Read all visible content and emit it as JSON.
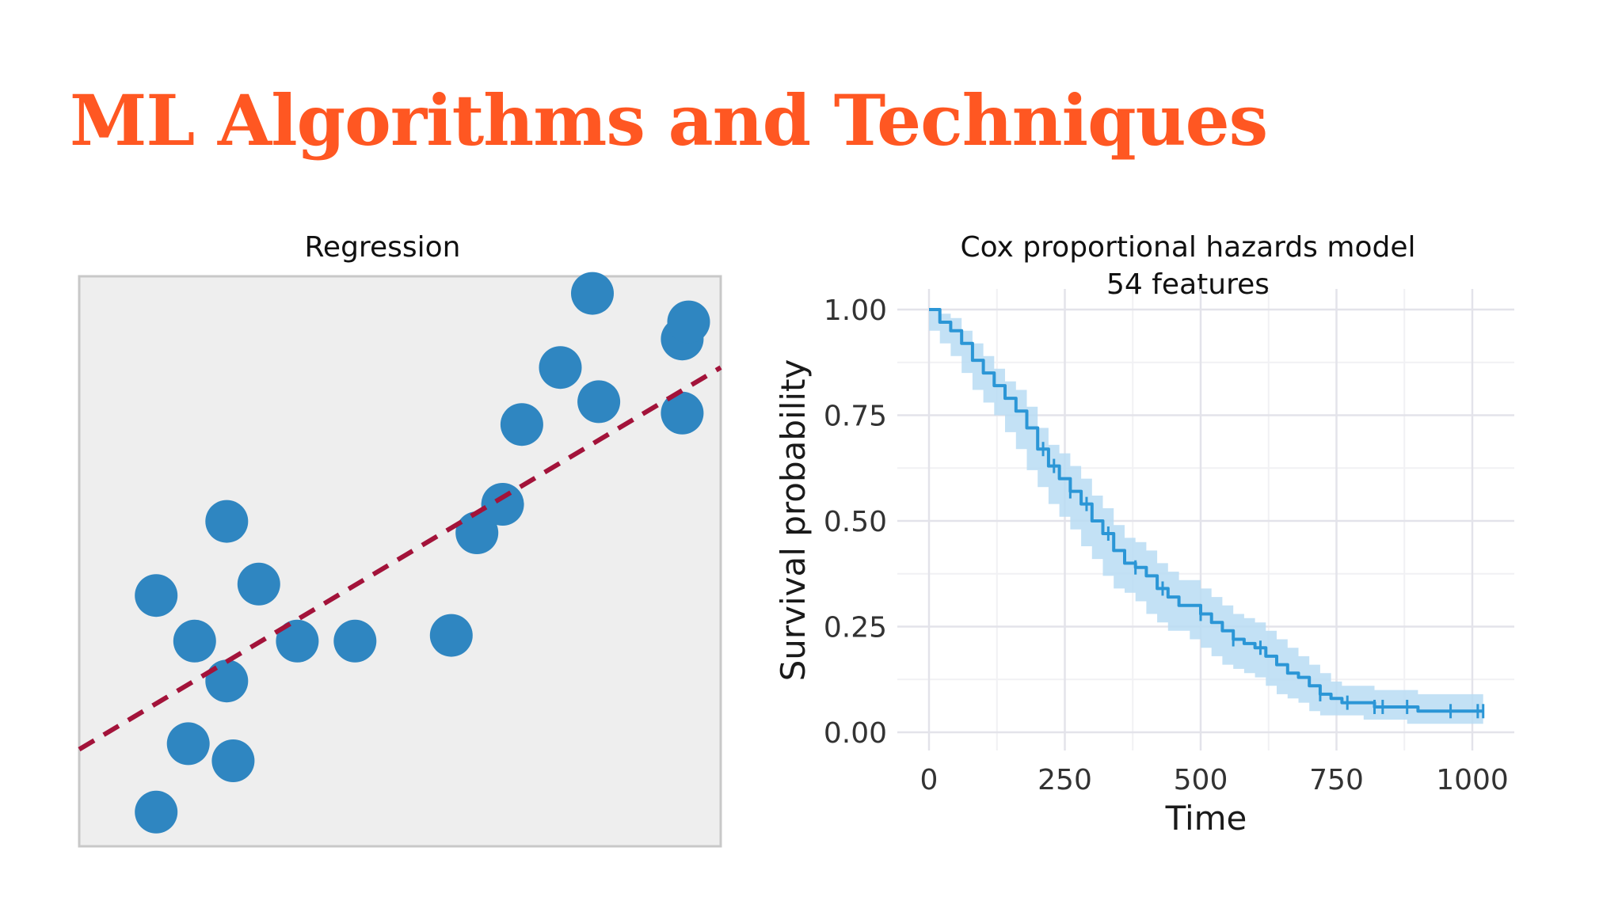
{
  "slide": {
    "title": "ML Algorithms and Techniques",
    "title_color": "#ff5722"
  },
  "chart_data": [
    {
      "type": "scatter",
      "title": "Regression",
      "xlim": [
        0,
        10
      ],
      "ylim": [
        0,
        10
      ],
      "grid": false,
      "background": "#eeeeee",
      "point_color": "#2f86c1",
      "trendline_color": "#a3133a",
      "trendline_style": "dashed",
      "points": [
        {
          "x": 1.2,
          "y": 0.6
        },
        {
          "x": 1.7,
          "y": 1.8
        },
        {
          "x": 2.4,
          "y": 1.5
        },
        {
          "x": 1.2,
          "y": 4.4
        },
        {
          "x": 1.8,
          "y": 3.6
        },
        {
          "x": 2.3,
          "y": 2.9
        },
        {
          "x": 2.3,
          "y": 5.7
        },
        {
          "x": 2.8,
          "y": 4.6
        },
        {
          "x": 3.4,
          "y": 3.6
        },
        {
          "x": 4.3,
          "y": 3.6
        },
        {
          "x": 5.8,
          "y": 3.7
        },
        {
          "x": 6.2,
          "y": 5.5
        },
        {
          "x": 6.6,
          "y": 6.0
        },
        {
          "x": 6.9,
          "y": 7.4
        },
        {
          "x": 7.5,
          "y": 8.4
        },
        {
          "x": 8.1,
          "y": 7.8
        },
        {
          "x": 8.0,
          "y": 9.7
        },
        {
          "x": 9.4,
          "y": 7.6
        },
        {
          "x": 9.4,
          "y": 8.9
        },
        {
          "x": 9.5,
          "y": 9.2
        }
      ],
      "trendline": {
        "x": [
          0,
          10
        ],
        "y": [
          1.7,
          8.4
        ]
      }
    },
    {
      "type": "line",
      "title": "Cox proportional hazards model",
      "subtitle": "54 features",
      "xlabel": "Time",
      "ylabel": "Survival probability",
      "xlim": [
        0,
        1050
      ],
      "ylim": [
        0,
        1
      ],
      "xticks": [
        "0",
        "250",
        "500",
        "750",
        "1000"
      ],
      "yticks": [
        "0.00",
        "0.25",
        "0.50",
        "0.75",
        "1.00"
      ],
      "xtick_values": [
        0,
        250,
        500,
        750,
        1000
      ],
      "ytick_values": [
        0,
        0.25,
        0.5,
        0.75,
        1
      ],
      "grid": true,
      "line_color": "#2b96d6",
      "band_color": "#b9dcf3",
      "series": [
        {
          "x": [
            0,
            20,
            40,
            60,
            80,
            100,
            120,
            140,
            160,
            180,
            200,
            220,
            240,
            260,
            280,
            300,
            320,
            340,
            360,
            380,
            400,
            420,
            440,
            460,
            480,
            500,
            520,
            540,
            560,
            580,
            600,
            620,
            640,
            660,
            680,
            700,
            720,
            740,
            760,
            780,
            800,
            820,
            840,
            860,
            880,
            900,
            920,
            940,
            960,
            980,
            1000,
            1020
          ],
          "y": [
            1.0,
            0.97,
            0.95,
            0.92,
            0.88,
            0.85,
            0.82,
            0.79,
            0.76,
            0.72,
            0.67,
            0.63,
            0.6,
            0.57,
            0.54,
            0.5,
            0.47,
            0.43,
            0.4,
            0.39,
            0.37,
            0.34,
            0.32,
            0.3,
            0.3,
            0.28,
            0.26,
            0.24,
            0.22,
            0.21,
            0.2,
            0.18,
            0.16,
            0.14,
            0.13,
            0.11,
            0.09,
            0.08,
            0.07,
            0.07,
            0.07,
            0.06,
            0.06,
            0.06,
            0.06,
            0.05,
            0.05,
            0.05,
            0.05,
            0.05,
            0.05,
            0.05
          ],
          "lower": [
            1.0,
            0.95,
            0.92,
            0.89,
            0.85,
            0.81,
            0.78,
            0.75,
            0.71,
            0.67,
            0.62,
            0.58,
            0.54,
            0.51,
            0.48,
            0.44,
            0.41,
            0.37,
            0.34,
            0.33,
            0.31,
            0.28,
            0.26,
            0.24,
            0.24,
            0.22,
            0.2,
            0.18,
            0.16,
            0.15,
            0.14,
            0.13,
            0.11,
            0.09,
            0.08,
            0.07,
            0.05,
            0.04,
            0.04,
            0.04,
            0.04,
            0.03,
            0.03,
            0.03,
            0.03,
            0.02,
            0.02,
            0.02,
            0.02,
            0.02,
            0.02,
            0.02
          ],
          "upper": [
            1.0,
            0.99,
            0.98,
            0.95,
            0.92,
            0.89,
            0.86,
            0.83,
            0.81,
            0.77,
            0.72,
            0.68,
            0.66,
            0.63,
            0.6,
            0.56,
            0.53,
            0.49,
            0.46,
            0.45,
            0.43,
            0.4,
            0.38,
            0.36,
            0.36,
            0.34,
            0.32,
            0.3,
            0.28,
            0.27,
            0.26,
            0.24,
            0.22,
            0.2,
            0.18,
            0.16,
            0.14,
            0.12,
            0.11,
            0.11,
            0.11,
            0.1,
            0.1,
            0.1,
            0.1,
            0.09,
            0.09,
            0.09,
            0.09,
            0.09,
            0.09,
            0.09
          ]
        }
      ],
      "censor_times": [
        210,
        230,
        260,
        290,
        330,
        380,
        430,
        500,
        560,
        610,
        720,
        770,
        820,
        835,
        880,
        960,
        1010,
        1020
      ]
    }
  ]
}
